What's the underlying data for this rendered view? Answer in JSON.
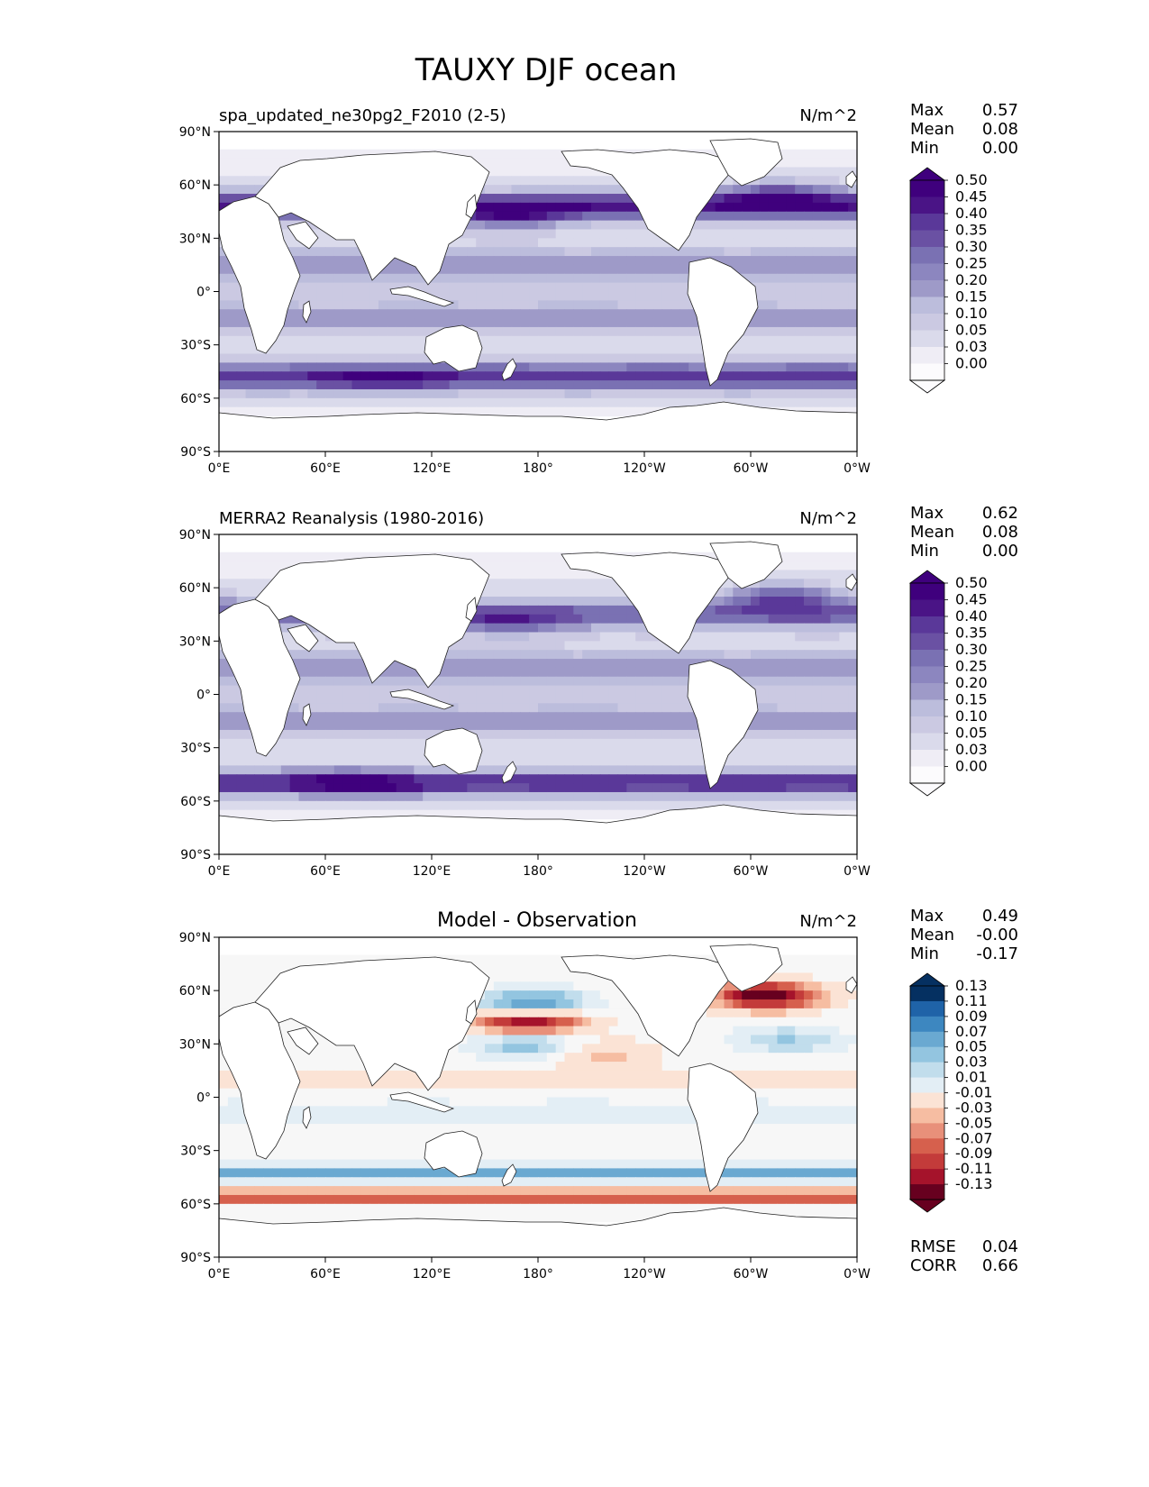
{
  "figure": {
    "title": "TAUXY DJF ocean"
  },
  "axis_labels": {
    "lat": [
      "90°N",
      "60°N",
      "30°N",
      "0°",
      "30°S",
      "60°S",
      "90°S"
    ],
    "lon": [
      "0°E",
      "60°E",
      "120°E",
      "180°",
      "120°W",
      "60°W",
      "0°W"
    ]
  },
  "colors": {
    "seq": [
      "#fcfbfd",
      "#efedf5",
      "#dadaeb",
      "#cbc9e2",
      "#bcbddc",
      "#9e9ac8",
      "#8c86bf",
      "#7a71b3",
      "#6a51a3",
      "#5a3899",
      "#4a1486",
      "#3f007d"
    ],
    "div_neg": [
      "#fbe3d5",
      "#f6bda2",
      "#e8907a",
      "#d6604d",
      "#c33b3a",
      "#a5132b",
      "#67001f"
    ],
    "div_pos": [
      "#e3eef5",
      "#c1ddec",
      "#93c5e0",
      "#6aa9d1",
      "#3d87c0",
      "#1f63a8",
      "#053061"
    ],
    "land": "#ffffff",
    "coast": "#222222"
  },
  "chart_data": [
    {
      "type": "heatmap",
      "panel": "test",
      "title": "spa_updated_ne30pg2_F2010 (2-5)",
      "units": "N/m^2",
      "stats": {
        "labels": [
          "Max",
          "Mean",
          "Min"
        ],
        "values": [
          "0.57",
          "0.08",
          "0.00"
        ]
      },
      "colorbar": {
        "ticks": [
          "0.50",
          "0.45",
          "0.40",
          "0.35",
          "0.30",
          "0.25",
          "0.20",
          "0.15",
          "0.10",
          "0.05",
          "0.03",
          "0.00"
        ],
        "extend": "both"
      },
      "field": {
        "scale": 0.57,
        "bands": [
          {
            "lat": 48,
            "w": 8,
            "amp": 0.42
          },
          {
            "lat": -48,
            "w": 8,
            "amp": 0.38
          },
          {
            "lat": 15,
            "w": 9,
            "amp": 0.16
          },
          {
            "lat": -15,
            "w": 9,
            "amp": 0.14
          }
        ],
        "blobs": [
          {
            "lon": 165,
            "lat": 42,
            "amp": 0.2
          },
          {
            "lon": 320,
            "lat": 55,
            "amp": 0.25
          },
          {
            "lon": 90,
            "lat": -50,
            "amp": 0.12
          }
        ]
      },
      "ylim": [
        -90,
        90
      ],
      "xlim": [
        0,
        360
      ]
    },
    {
      "type": "heatmap",
      "panel": "reference",
      "title": "MERRA2 Reanalysis (1980-2016)",
      "units": "N/m^2",
      "stats": {
        "labels": [
          "Max",
          "Mean",
          "Min"
        ],
        "values": [
          "0.62",
          "0.08",
          "0.00"
        ]
      },
      "colorbar": {
        "ticks": [
          "0.50",
          "0.45",
          "0.40",
          "0.35",
          "0.30",
          "0.25",
          "0.20",
          "0.15",
          "0.10",
          "0.05",
          "0.03",
          "0.00"
        ],
        "extend": "both"
      },
      "field": {
        "scale": 0.62,
        "bands": [
          {
            "lat": 45,
            "w": 8,
            "amp": 0.3
          },
          {
            "lat": -50,
            "w": 7,
            "amp": 0.4
          },
          {
            "lat": 15,
            "w": 9,
            "amp": 0.16
          },
          {
            "lat": -15,
            "w": 9,
            "amp": 0.14
          }
        ],
        "blobs": [
          {
            "lon": 165,
            "lat": 40,
            "amp": 0.15
          },
          {
            "lon": 320,
            "lat": 55,
            "amp": 0.3
          },
          {
            "lon": 75,
            "lat": -50,
            "amp": 0.16
          }
        ]
      },
      "ylim": [
        -90,
        90
      ],
      "xlim": [
        0,
        360
      ]
    },
    {
      "type": "heatmap",
      "panel": "difference",
      "title": "Model - Observation",
      "units": "N/m^2",
      "stats": {
        "labels": [
          "Max",
          "Mean",
          "Min"
        ],
        "values": [
          "0.49",
          "-0.00",
          "-0.17"
        ]
      },
      "colorbar": {
        "ticks": [
          "0.13",
          "0.11",
          "0.09",
          "0.07",
          "0.05",
          "0.03",
          "0.01",
          "-0.01",
          "-0.03",
          "-0.05",
          "-0.07",
          "-0.09",
          "-0.11",
          "-0.13"
        ],
        "extend": "both"
      },
      "metrics": {
        "labels": [
          "RMSE",
          "CORR"
        ],
        "values": [
          "0.04",
          "0.66"
        ]
      },
      "field": {
        "bands": [
          {
            "lat": -42,
            "w": 4,
            "amp": 0.08
          },
          {
            "lat": -56,
            "w": 3.5,
            "amp": -0.1
          },
          {
            "lat": 8,
            "w": 10,
            "amp": -0.015
          },
          {
            "lat": -8,
            "w": 10,
            "amp": 0.02
          }
        ],
        "blobs": [
          {
            "lon": 175,
            "lat": 43,
            "amp": -0.16
          },
          {
            "lon": 175,
            "lat": 52,
            "amp": 0.12
          },
          {
            "lon": 175,
            "lat": 30,
            "amp": 0.07
          },
          {
            "lon": 310,
            "lat": 57,
            "amp": -0.15
          },
          {
            "lon": 320,
            "lat": 32,
            "amp": 0.05
          },
          {
            "lon": 215,
            "lat": 25,
            "amp": -0.04
          }
        ]
      },
      "ylim": [
        -90,
        90
      ],
      "xlim": [
        0,
        360
      ]
    }
  ]
}
